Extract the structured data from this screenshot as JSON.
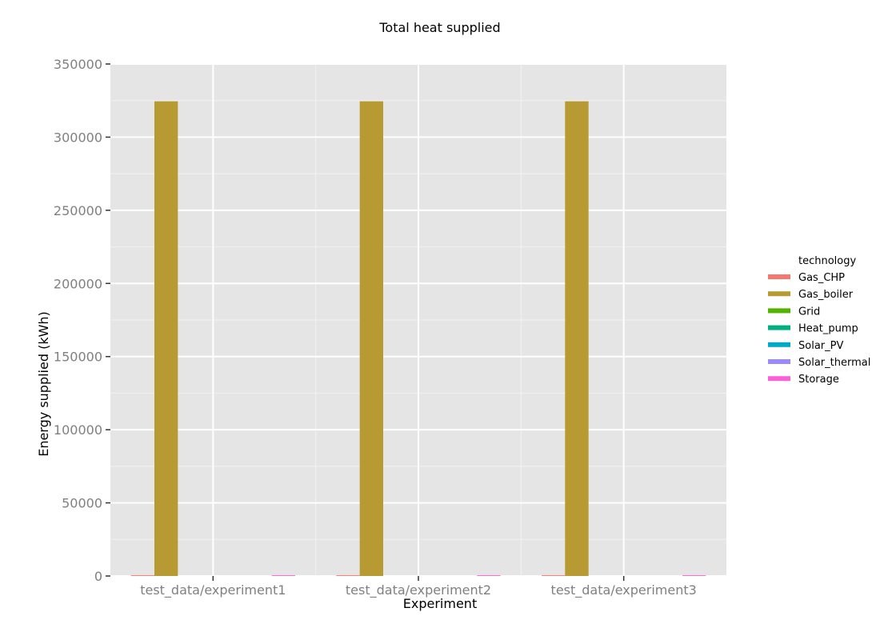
{
  "chart_data": {
    "type": "bar",
    "title": "Total heat supplied",
    "xlabel": "Experiment",
    "ylabel": "Energy supplied (kWh)",
    "ylim": [
      0,
      350000
    ],
    "yticks": [
      0,
      50000,
      100000,
      150000,
      200000,
      250000,
      300000,
      350000
    ],
    "ytick_labels": [
      "0",
      "50000",
      "100000",
      "150000",
      "200000",
      "250000",
      "300000",
      "350000"
    ],
    "categories": [
      "test_data/experiment1",
      "test_data/experiment2",
      "test_data/experiment3"
    ],
    "grid": true,
    "legend_position": "right",
    "legend_title": "technology",
    "series": [
      {
        "name": "Gas_CHP",
        "color": "#f8766d",
        "values": [
          500,
          500,
          500
        ]
      },
      {
        "name": "Gas_boiler",
        "color": "#b79a31",
        "values": [
          324500,
          324500,
          324500
        ]
      },
      {
        "name": "Grid",
        "color": "#53b400",
        "values": [
          0,
          0,
          0
        ]
      },
      {
        "name": "Heat_pump",
        "color": "#00b081",
        "values": [
          0,
          0,
          0
        ]
      },
      {
        "name": "Solar_PV",
        "color": "#00a9c6",
        "values": [
          0,
          0,
          0
        ]
      },
      {
        "name": "Solar_thermal",
        "color": "#9b8aff",
        "values": [
          0,
          0,
          0
        ]
      },
      {
        "name": "Storage",
        "color": "#fb61d7",
        "values": [
          500,
          500,
          500
        ]
      }
    ]
  }
}
